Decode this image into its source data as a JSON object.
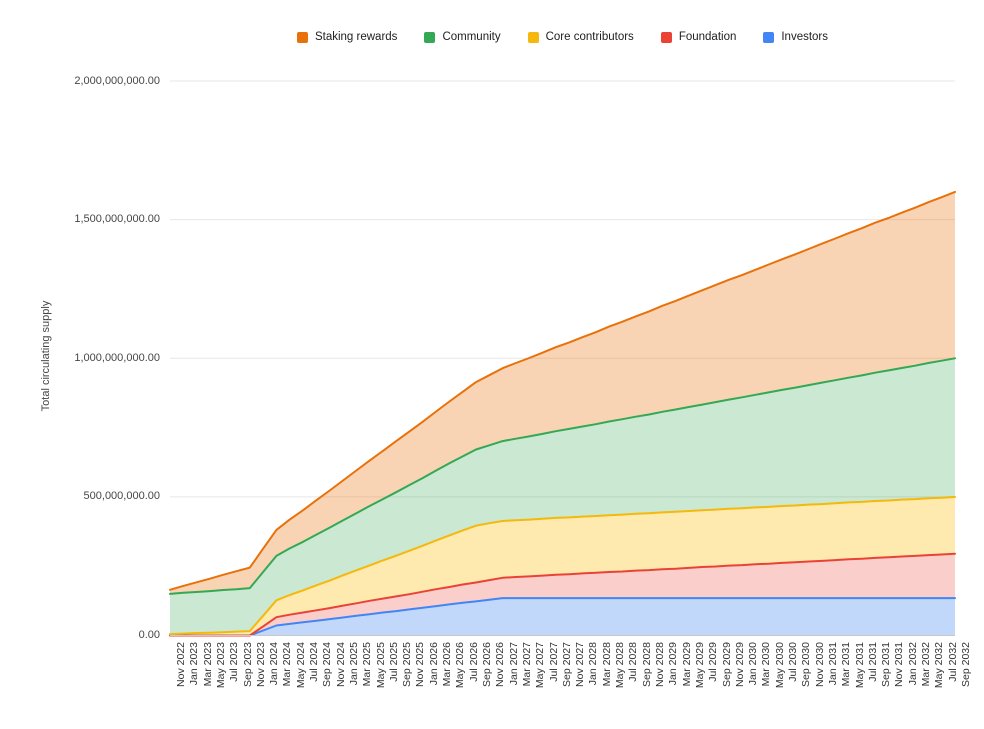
{
  "page": {
    "background": "#ffffff"
  },
  "legend": {
    "items": [
      {
        "label": "Staking rewards",
        "color": "#E8710A"
      },
      {
        "label": "Community",
        "color": "#34A853"
      },
      {
        "label": "Core contributors",
        "color": "#F5B80C"
      },
      {
        "label": "Foundation",
        "color": "#EA4335"
      },
      {
        "label": "Investors",
        "color": "#4285F4"
      }
    ]
  },
  "y_axis": {
    "title": "Total circulating supply",
    "tick_labels": [
      "0.00",
      "500,000,000.00",
      "1,000,000,000.00",
      "1,500,000,000.00",
      "2,000,000,000.00"
    ],
    "tick_values_millions": [
      0,
      500,
      1000,
      1500,
      2000
    ]
  },
  "chart_data": {
    "type": "area",
    "stacked": true,
    "title": "",
    "xlabel": "",
    "ylabel": "Total circulating supply",
    "ylim_millions": [
      0,
      2000
    ],
    "grid": true,
    "legend_position": "top",
    "value_unit": "tokens",
    "value_multiplier": 1000000,
    "x": [
      "Nov 2022",
      "Jan 2023",
      "Mar 2023",
      "May 2023",
      "Jul 2023",
      "Sep 2023",
      "Nov 2023",
      "Jan 2024",
      "Mar 2024",
      "May 2024",
      "Jul 2024",
      "Sep 2024",
      "Nov 2024",
      "Jan 2025",
      "Mar 2025",
      "May 2025",
      "Jul 2025",
      "Sep 2025",
      "Nov 2025",
      "Jan 2026",
      "Mar 2026",
      "May 2026",
      "Jul 2026",
      "Sep 2026",
      "Nov 2026",
      "Jan 2027",
      "Mar 2027",
      "May 2027",
      "Jul 2027",
      "Sep 2027",
      "Nov 2027",
      "Jan 2028",
      "Mar 2028",
      "May 2028",
      "Jul 2028",
      "Sep 2028",
      "Nov 2028",
      "Jan 2029",
      "Mar 2029",
      "May 2029",
      "Jul 2029",
      "Sep 2029",
      "Nov 2029",
      "Jan 2030",
      "Mar 2030",
      "May 2030",
      "Jul 2030",
      "Sep 2030",
      "Nov 2030",
      "Jan 2031",
      "Mar 2031",
      "May 2031",
      "Jul 2031",
      "Sep 2031",
      "Nov 2031",
      "Jan 2032",
      "Mar 2032",
      "May 2032",
      "Jul 2032",
      "Sep 2032"
    ],
    "series": [
      {
        "name": "Investors",
        "color": "#4285F4",
        "fill": "rgba(66,133,244,0.32)",
        "values_millions": [
          0,
          0,
          0,
          0,
          0,
          0,
          0,
          18,
          36,
          42,
          48,
          53,
          59,
          65,
          71,
          77,
          83,
          88,
          94,
          100,
          106,
          112,
          118,
          123,
          129,
          135,
          135,
          135,
          135,
          135,
          135,
          135,
          135,
          135,
          135,
          135,
          135,
          135,
          135,
          135,
          135,
          135,
          135,
          135,
          135,
          135,
          135,
          135,
          135,
          135,
          135,
          135,
          135,
          135,
          135,
          135,
          135,
          135,
          135,
          135
        ]
      },
      {
        "name": "Foundation",
        "color": "#EA4335",
        "fill": "rgba(234,67,53,0.26)",
        "values_millions": [
          0,
          0,
          0,
          0,
          0,
          0,
          0,
          15,
          30,
          33,
          35,
          38,
          40,
          43,
          45,
          48,
          50,
          53,
          55,
          58,
          61,
          63,
          66,
          68,
          71,
          73,
          76,
          78,
          81,
          84,
          86,
          89,
          91,
          94,
          96,
          99,
          101,
          104,
          106,
          109,
          112,
          114,
          117,
          119,
          122,
          124,
          127,
          129,
          132,
          134,
          137,
          140,
          142,
          145,
          147,
          150,
          152,
          155,
          157,
          160
        ]
      },
      {
        "name": "Core contributors",
        "color": "#F5B80C",
        "fill": "rgba(251,188,4,0.32)",
        "values_millions": [
          5,
          7,
          9,
          10,
          12,
          14,
          16,
          38,
          61,
          71,
          80,
          90,
          99,
          109,
          119,
          128,
          138,
          147,
          157,
          166,
          176,
          186,
          195,
          205,
          205,
          205,
          205,
          205,
          205,
          205,
          205,
          205,
          205,
          205,
          205,
          205,
          205,
          205,
          205,
          205,
          205,
          205,
          205,
          205,
          205,
          205,
          205,
          205,
          205,
          205,
          205,
          205,
          205,
          205,
          205,
          205,
          205,
          205,
          205,
          205
        ]
      },
      {
        "name": "Community",
        "color": "#34A853",
        "fill": "rgba(52,168,83,0.26)",
        "values_millions": [
          145,
          147,
          148,
          150,
          152,
          153,
          155,
          158,
          160,
          168,
          175,
          183,
          191,
          198,
          206,
          214,
          221,
          229,
          237,
          244,
          252,
          260,
          267,
          275,
          281,
          288,
          294,
          300,
          306,
          313,
          319,
          325,
          331,
          338,
          344,
          350,
          356,
          363,
          369,
          375,
          381,
          388,
          394,
          400,
          406,
          413,
          419,
          425,
          431,
          438,
          444,
          450,
          456,
          463,
          469,
          475,
          481,
          488,
          494,
          500
        ]
      },
      {
        "name": "Staking rewards",
        "color": "#E8710A",
        "fill": "rgba(232,113,10,0.30)",
        "values_millions": [
          15,
          25,
          35,
          45,
          55,
          65,
          74,
          84,
          94,
          104,
          114,
          124,
          134,
          144,
          154,
          164,
          174,
          184,
          193,
          203,
          213,
          223,
          233,
          243,
          253,
          263,
          273,
          283,
          293,
          303,
          312,
          322,
          332,
          342,
          352,
          362,
          372,
          382,
          392,
          402,
          412,
          422,
          432,
          441,
          451,
          461,
          471,
          481,
          491,
          501,
          511,
          521,
          531,
          541,
          550,
          560,
          570,
          580,
          590,
          600
        ]
      }
    ]
  }
}
